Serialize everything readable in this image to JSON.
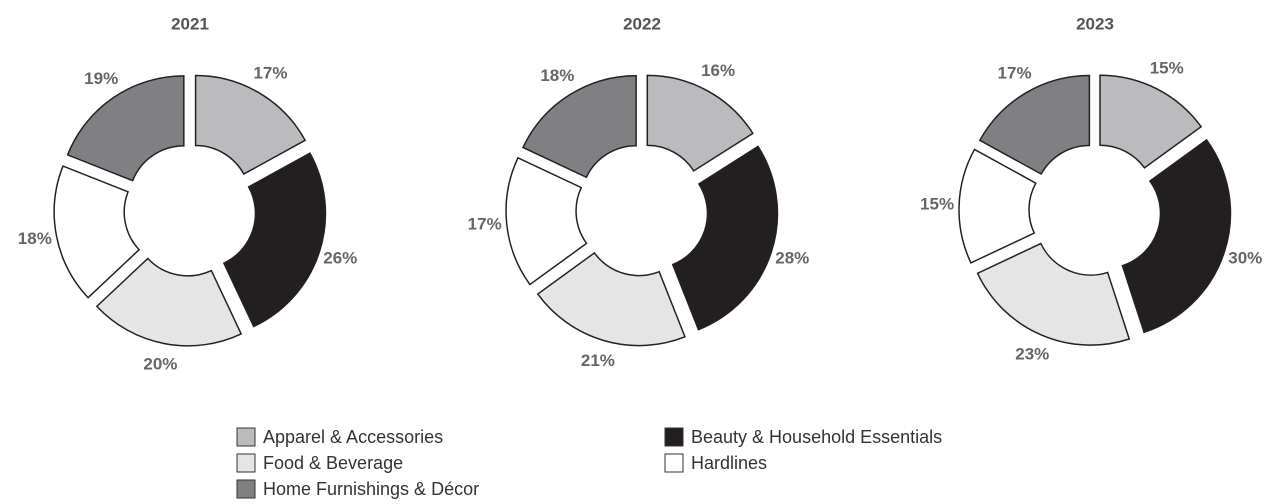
{
  "chart_data": {
    "type": "pie",
    "donut": true,
    "categories": [
      "Apparel & Accessories",
      "Beauty & Household Essentials",
      "Food & Beverage",
      "Hardlines",
      "Home Furnishings & Décor"
    ],
    "colors": [
      "#bbbbbd",
      "#231f20",
      "#e5e5e6",
      "#ffffff",
      "#808083"
    ],
    "series": [
      {
        "name": "2021",
        "values": [
          17,
          26,
          20,
          18,
          19
        ],
        "value_labels": [
          "17%",
          "26%",
          "20%",
          "18%",
          "19%"
        ]
      },
      {
        "name": "2022",
        "values": [
          16,
          28,
          21,
          17,
          18
        ],
        "value_labels": [
          "16%",
          "28%",
          "21%",
          "17%",
          "18%"
        ]
      },
      {
        "name": "2023",
        "values": [
          15,
          30,
          23,
          15,
          17
        ],
        "value_labels": [
          "15%",
          "30%",
          "23%",
          "15%",
          "17%"
        ]
      }
    ]
  }
}
